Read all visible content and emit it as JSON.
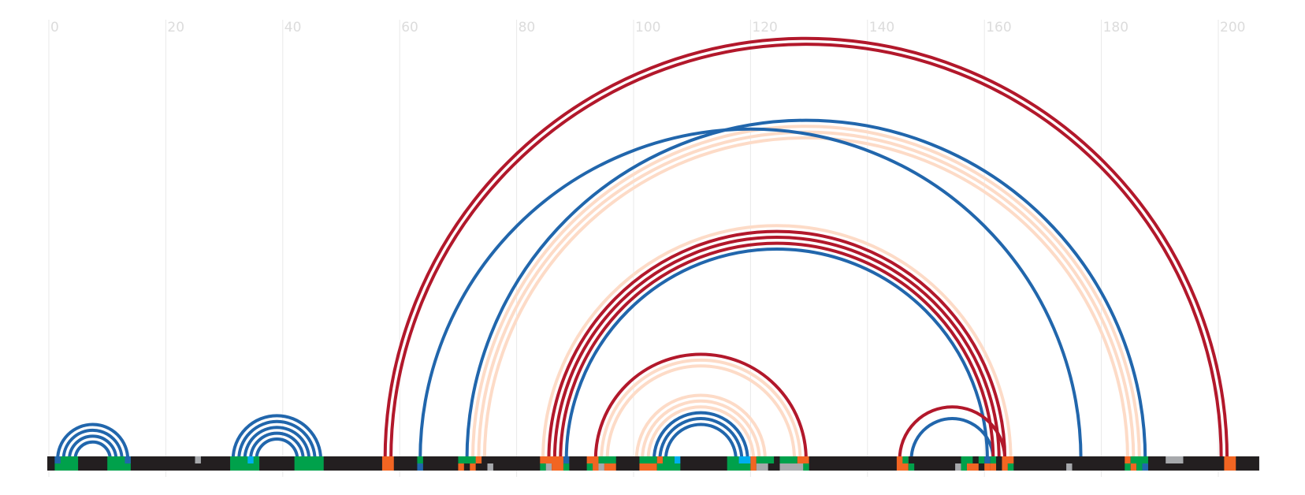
{
  "axis": {
    "ticks": [
      0,
      20,
      40,
      60,
      80,
      100,
      120,
      140,
      160,
      180,
      200
    ],
    "tick_labels": [
      "0",
      "20",
      "40",
      "60",
      "80",
      "100",
      "120",
      "140",
      "160",
      "180",
      "200"
    ],
    "range": [
      0,
      207
    ]
  },
  "colors": {
    "background": "#ffffff",
    "track": "#231f20",
    "blue": "#2166ac",
    "red": "#b2182b",
    "peach": "#fddbc7",
    "green": "#00a14b",
    "orange": "#f26522",
    "cyan": "#00aeef",
    "gray": "#a7a9ac",
    "gridline": "#e9e9e9",
    "ticklabel": "#dcdcdc"
  },
  "arc_groups": [
    {
      "color": "blue",
      "a": 1.5,
      "b": 13.5,
      "count": 4,
      "step": 1
    },
    {
      "color": "blue",
      "a": 31.5,
      "b": 46.5,
      "count": 5,
      "step": 1
    },
    {
      "color": "red",
      "a": 57.5,
      "b": 201.5,
      "count": 2,
      "step": 1
    },
    {
      "color": "blue",
      "a": 63.5,
      "b": 176.5,
      "count": 1,
      "step": 1
    },
    {
      "color": "blue",
      "a": 71.5,
      "b": 187.5,
      "count": 1,
      "step": 1
    },
    {
      "color": "peach",
      "a": 72.5,
      "b": 186.5,
      "count": 3,
      "step": 1
    },
    {
      "color": "peach",
      "a": 84.5,
      "b": 164.5,
      "count": 1,
      "step": 1
    },
    {
      "color": "red",
      "a": 85.5,
      "b": 163.5,
      "count": 3,
      "step": 1
    },
    {
      "color": "blue",
      "a": 88.5,
      "b": 160.5,
      "count": 1,
      "step": 1
    },
    {
      "color": "red",
      "a": 93.5,
      "b": 129.5,
      "count": 1,
      "step": 1
    },
    {
      "color": "peach",
      "a": 94.5,
      "b": 128.5,
      "count": 2,
      "step": 1
    },
    {
      "color": "peach",
      "a": 100.5,
      "b": 122.5,
      "count": 3,
      "step": 1
    },
    {
      "color": "blue",
      "a": 103.5,
      "b": 119.5,
      "count": 3,
      "step": 1
    },
    {
      "color": "red",
      "a": 145.5,
      "b": 163.5,
      "count": 1,
      "step": 1
    },
    {
      "color": "blue",
      "a": 147.5,
      "b": 161.5,
      "count": 1,
      "step": 1
    }
  ],
  "track_segments": [
    {
      "start": 1,
      "end": 5,
      "color": "green"
    },
    {
      "start": 1,
      "end": 2,
      "color": "blue",
      "row": "top"
    },
    {
      "start": 10,
      "end": 14,
      "color": "green"
    },
    {
      "start": 13,
      "end": 14,
      "color": "blue",
      "row": "top"
    },
    {
      "start": 25,
      "end": 26,
      "color": "gray",
      "row": "top"
    },
    {
      "start": 31,
      "end": 36,
      "color": "green"
    },
    {
      "start": 34,
      "end": 35,
      "color": "cyan",
      "row": "top"
    },
    {
      "start": 42,
      "end": 47,
      "color": "green"
    },
    {
      "start": 57,
      "end": 59,
      "color": "orange"
    },
    {
      "start": 63,
      "end": 64,
      "color": "green",
      "row": "top"
    },
    {
      "start": 63,
      "end": 64,
      "color": "blue",
      "row": "bottom"
    },
    {
      "start": 70,
      "end": 74,
      "color": "green",
      "row": "top"
    },
    {
      "start": 73,
      "end": 74,
      "color": "orange",
      "row": "top"
    },
    {
      "start": 70,
      "end": 71,
      "color": "orange",
      "row": "bottom"
    },
    {
      "start": 72,
      "end": 73,
      "color": "orange",
      "row": "bottom"
    },
    {
      "start": 75,
      "end": 76,
      "color": "gray",
      "row": "bottom"
    },
    {
      "start": 84,
      "end": 88,
      "color": "orange",
      "row": "top"
    },
    {
      "start": 84,
      "end": 85,
      "color": "green",
      "row": "bottom"
    },
    {
      "start": 85,
      "end": 86,
      "color": "gray",
      "row": "bottom"
    },
    {
      "start": 86,
      "end": 88,
      "color": "orange",
      "row": "bottom"
    },
    {
      "start": 88,
      "end": 89,
      "color": "blue",
      "row": "top"
    },
    {
      "start": 88,
      "end": 89,
      "color": "green",
      "row": "bottom"
    },
    {
      "start": 92,
      "end": 94,
      "color": "orange",
      "row": "top"
    },
    {
      "start": 94,
      "end": 97,
      "color": "green",
      "row": "top"
    },
    {
      "start": 92,
      "end": 93,
      "color": "green",
      "row": "bottom"
    },
    {
      "start": 93,
      "end": 94,
      "color": "orange",
      "row": "bottom"
    },
    {
      "start": 94,
      "end": 95,
      "color": "gray",
      "row": "bottom"
    },
    {
      "start": 95,
      "end": 97,
      "color": "orange",
      "row": "bottom"
    },
    {
      "start": 101,
      "end": 104,
      "color": "green",
      "row": "top"
    },
    {
      "start": 104,
      "end": 105,
      "color": "orange",
      "row": "top"
    },
    {
      "start": 105,
      "end": 107,
      "color": "green",
      "row": "top"
    },
    {
      "start": 107,
      "end": 108,
      "color": "cyan",
      "row": "top"
    },
    {
      "start": 101,
      "end": 104,
      "color": "orange",
      "row": "bottom"
    },
    {
      "start": 104,
      "end": 108,
      "color": "green",
      "row": "bottom"
    },
    {
      "start": 116,
      "end": 118,
      "color": "green",
      "row": "top"
    },
    {
      "start": 118,
      "end": 120,
      "color": "cyan",
      "row": "top"
    },
    {
      "start": 120,
      "end": 121,
      "color": "orange",
      "row": "top"
    },
    {
      "start": 121,
      "end": 124,
      "color": "green",
      "row": "top"
    },
    {
      "start": 116,
      "end": 120,
      "color": "green",
      "row": "bottom"
    },
    {
      "start": 120,
      "end": 121,
      "color": "orange",
      "row": "bottom"
    },
    {
      "start": 121,
      "end": 123,
      "color": "gray",
      "row": "bottom"
    },
    {
      "start": 125,
      "end": 128,
      "color": "green",
      "row": "top"
    },
    {
      "start": 128,
      "end": 130,
      "color": "orange",
      "row": "top"
    },
    {
      "start": 125,
      "end": 130,
      "color": "gray",
      "row": "bottom"
    },
    {
      "start": 129,
      "end": 130,
      "color": "green",
      "row": "bottom"
    },
    {
      "start": 145,
      "end": 147,
      "color": "orange",
      "row": "top"
    },
    {
      "start": 146,
      "end": 147,
      "color": "green",
      "row": "top"
    },
    {
      "start": 145,
      "end": 147,
      "color": "orange",
      "row": "bottom"
    },
    {
      "start": 147,
      "end": 148,
      "color": "green",
      "row": "bottom"
    },
    {
      "start": 155,
      "end": 156,
      "color": "gray",
      "row": "bottom"
    },
    {
      "start": 156,
      "end": 158,
      "color": "green",
      "row": "top"
    },
    {
      "start": 156,
      "end": 157,
      "color": "green",
      "row": "bottom"
    },
    {
      "start": 157,
      "end": 159,
      "color": "orange",
      "row": "bottom"
    },
    {
      "start": 159,
      "end": 160,
      "color": "green",
      "row": "top"
    },
    {
      "start": 160,
      "end": 161,
      "color": "blue",
      "row": "top"
    },
    {
      "start": 160,
      "end": 161,
      "color": "orange",
      "row": "bottom"
    },
    {
      "start": 161,
      "end": 162,
      "color": "orange",
      "row": "bottom"
    },
    {
      "start": 161,
      "end": 162,
      "color": "green",
      "row": "top"
    },
    {
      "start": 163,
      "end": 165,
      "color": "orange",
      "row": "top"
    },
    {
      "start": 163,
      "end": 164,
      "color": "orange",
      "row": "bottom"
    },
    {
      "start": 164,
      "end": 165,
      "color": "green",
      "row": "bottom"
    },
    {
      "start": 174,
      "end": 175,
      "color": "gray",
      "row": "bottom"
    },
    {
      "start": 184,
      "end": 185,
      "color": "orange",
      "row": "top"
    },
    {
      "start": 185,
      "end": 188,
      "color": "green",
      "row": "top"
    },
    {
      "start": 184,
      "end": 185,
      "color": "green",
      "row": "bottom"
    },
    {
      "start": 185,
      "end": 186,
      "color": "orange",
      "row": "bottom"
    },
    {
      "start": 186,
      "end": 187,
      "color": "green",
      "row": "bottom"
    },
    {
      "start": 187,
      "end": 188,
      "color": "blue",
      "row": "bottom"
    },
    {
      "start": 191,
      "end": 194,
      "color": "gray",
      "row": "top"
    },
    {
      "start": 201,
      "end": 203,
      "color": "orange"
    }
  ]
}
